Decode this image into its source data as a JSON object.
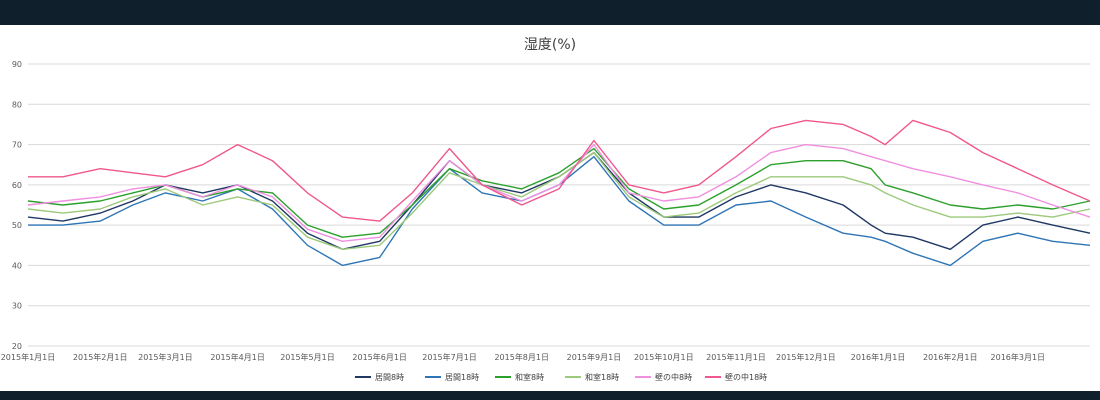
{
  "chart_data": {
    "type": "line",
    "title": "湿度(%)",
    "ylim": [
      20,
      90
    ],
    "yticks": [
      20,
      30,
      40,
      50,
      60,
      70,
      80,
      90
    ],
    "x_range_days": [
      0,
      456
    ],
    "xticks": [
      {
        "day": 0,
        "label": "2015年1月1日"
      },
      {
        "day": 31,
        "label": "2015年2月1日"
      },
      {
        "day": 59,
        "label": "2015年3月1日"
      },
      {
        "day": 90,
        "label": "2015年4月1日"
      },
      {
        "day": 120,
        "label": "2015年5月1日"
      },
      {
        "day": 151,
        "label": "2015年6月1日"
      },
      {
        "day": 181,
        "label": "2015年7月1日"
      },
      {
        "day": 212,
        "label": "2015年8月1日"
      },
      {
        "day": 243,
        "label": "2015年9月1日"
      },
      {
        "day": 273,
        "label": "2015年10月1日"
      },
      {
        "day": 304,
        "label": "2015年11月1日"
      },
      {
        "day": 334,
        "label": "2015年12月1日"
      },
      {
        "day": 365,
        "label": "2016年1月1日"
      },
      {
        "day": 396,
        "label": "2016年2月1日"
      },
      {
        "day": 425,
        "label": "2016年3月1日"
      }
    ],
    "grid": true,
    "legend_position": "bottom",
    "series": [
      {
        "name": "居間8時",
        "color": "#1f3864",
        "points": [
          [
            0,
            52
          ],
          [
            15,
            51
          ],
          [
            31,
            53
          ],
          [
            45,
            56
          ],
          [
            59,
            60
          ],
          [
            75,
            58
          ],
          [
            90,
            60
          ],
          [
            105,
            56
          ],
          [
            120,
            48
          ],
          [
            135,
            44
          ],
          [
            151,
            46
          ],
          [
            165,
            55
          ],
          [
            181,
            66
          ],
          [
            195,
            60
          ],
          [
            212,
            58
          ],
          [
            228,
            62
          ],
          [
            243,
            68
          ],
          [
            258,
            58
          ],
          [
            273,
            52
          ],
          [
            288,
            52
          ],
          [
            304,
            57
          ],
          [
            319,
            60
          ],
          [
            334,
            58
          ],
          [
            350,
            55
          ],
          [
            362,
            50
          ],
          [
            368,
            48
          ],
          [
            380,
            47
          ],
          [
            396,
            44
          ],
          [
            410,
            50
          ],
          [
            425,
            52
          ],
          [
            440,
            50
          ],
          [
            456,
            48
          ]
        ]
      },
      {
        "name": "居間18時",
        "color": "#2e75b6",
        "points": [
          [
            0,
            50
          ],
          [
            15,
            50
          ],
          [
            31,
            51
          ],
          [
            45,
            55
          ],
          [
            59,
            58
          ],
          [
            75,
            56
          ],
          [
            90,
            59
          ],
          [
            105,
            54
          ],
          [
            120,
            45
          ],
          [
            135,
            40
          ],
          [
            151,
            42
          ],
          [
            165,
            54
          ],
          [
            181,
            64
          ],
          [
            195,
            58
          ],
          [
            212,
            56
          ],
          [
            228,
            60
          ],
          [
            243,
            67
          ],
          [
            258,
            56
          ],
          [
            273,
            50
          ],
          [
            288,
            50
          ],
          [
            304,
            55
          ],
          [
            319,
            56
          ],
          [
            334,
            52
          ],
          [
            350,
            48
          ],
          [
            362,
            47
          ],
          [
            368,
            46
          ],
          [
            380,
            43
          ],
          [
            396,
            40
          ],
          [
            410,
            46
          ],
          [
            425,
            48
          ],
          [
            440,
            46
          ],
          [
            456,
            45
          ]
        ]
      },
      {
        "name": "和室8時",
        "color": "#2ca02c",
        "points": [
          [
            0,
            56
          ],
          [
            15,
            55
          ],
          [
            31,
            56
          ],
          [
            45,
            58
          ],
          [
            59,
            60
          ],
          [
            75,
            57
          ],
          [
            90,
            59
          ],
          [
            105,
            58
          ],
          [
            120,
            50
          ],
          [
            135,
            47
          ],
          [
            151,
            48
          ],
          [
            165,
            55
          ],
          [
            181,
            64
          ],
          [
            195,
            61
          ],
          [
            212,
            59
          ],
          [
            228,
            63
          ],
          [
            243,
            69
          ],
          [
            258,
            59
          ],
          [
            273,
            54
          ],
          [
            288,
            55
          ],
          [
            304,
            60
          ],
          [
            319,
            65
          ],
          [
            334,
            66
          ],
          [
            350,
            66
          ],
          [
            362,
            64
          ],
          [
            368,
            60
          ],
          [
            380,
            58
          ],
          [
            396,
            55
          ],
          [
            410,
            54
          ],
          [
            425,
            55
          ],
          [
            440,
            54
          ],
          [
            456,
            56
          ]
        ]
      },
      {
        "name": "和室18時",
        "color": "#9cc97a",
        "points": [
          [
            0,
            54
          ],
          [
            15,
            53
          ],
          [
            31,
            54
          ],
          [
            45,
            57
          ],
          [
            59,
            59
          ],
          [
            75,
            55
          ],
          [
            90,
            57
          ],
          [
            105,
            55
          ],
          [
            120,
            47
          ],
          [
            135,
            44
          ],
          [
            151,
            45
          ],
          [
            165,
            53
          ],
          [
            181,
            63
          ],
          [
            195,
            60
          ],
          [
            212,
            57
          ],
          [
            228,
            62
          ],
          [
            243,
            68
          ],
          [
            258,
            57
          ],
          [
            273,
            52
          ],
          [
            288,
            53
          ],
          [
            304,
            58
          ],
          [
            319,
            62
          ],
          [
            334,
            62
          ],
          [
            350,
            62
          ],
          [
            362,
            60
          ],
          [
            368,
            58
          ],
          [
            380,
            55
          ],
          [
            396,
            52
          ],
          [
            410,
            52
          ],
          [
            425,
            53
          ],
          [
            440,
            52
          ],
          [
            456,
            54
          ]
        ]
      },
      {
        "name": "壁の中8時",
        "color": "#f08fe0",
        "points": [
          [
            0,
            55
          ],
          [
            15,
            56
          ],
          [
            31,
            57
          ],
          [
            45,
            59
          ],
          [
            59,
            60
          ],
          [
            75,
            57
          ],
          [
            90,
            60
          ],
          [
            105,
            57
          ],
          [
            120,
            49
          ],
          [
            135,
            46
          ],
          [
            151,
            47
          ],
          [
            165,
            56
          ],
          [
            181,
            66
          ],
          [
            195,
            60
          ],
          [
            212,
            56
          ],
          [
            228,
            60
          ],
          [
            243,
            70
          ],
          [
            258,
            58
          ],
          [
            273,
            56
          ],
          [
            288,
            57
          ],
          [
            304,
            62
          ],
          [
            319,
            68
          ],
          [
            334,
            70
          ],
          [
            350,
            69
          ],
          [
            362,
            67
          ],
          [
            368,
            66
          ],
          [
            380,
            64
          ],
          [
            396,
            62
          ],
          [
            410,
            60
          ],
          [
            425,
            58
          ],
          [
            440,
            55
          ],
          [
            456,
            52
          ]
        ]
      },
      {
        "name": "壁の中18時",
        "color": "#f0578f",
        "points": [
          [
            0,
            62
          ],
          [
            15,
            62
          ],
          [
            31,
            64
          ],
          [
            45,
            63
          ],
          [
            59,
            62
          ],
          [
            75,
            65
          ],
          [
            90,
            70
          ],
          [
            105,
            66
          ],
          [
            120,
            58
          ],
          [
            135,
            52
          ],
          [
            151,
            51
          ],
          [
            165,
            58
          ],
          [
            181,
            69
          ],
          [
            195,
            60
          ],
          [
            212,
            55
          ],
          [
            228,
            59
          ],
          [
            243,
            71
          ],
          [
            258,
            60
          ],
          [
            273,
            58
          ],
          [
            288,
            60
          ],
          [
            304,
            67
          ],
          [
            319,
            74
          ],
          [
            334,
            76
          ],
          [
            350,
            75
          ],
          [
            362,
            72
          ],
          [
            368,
            70
          ],
          [
            380,
            76
          ],
          [
            396,
            73
          ],
          [
            410,
            68
          ],
          [
            425,
            64
          ],
          [
            440,
            60
          ],
          [
            456,
            56
          ]
        ]
      }
    ]
  }
}
